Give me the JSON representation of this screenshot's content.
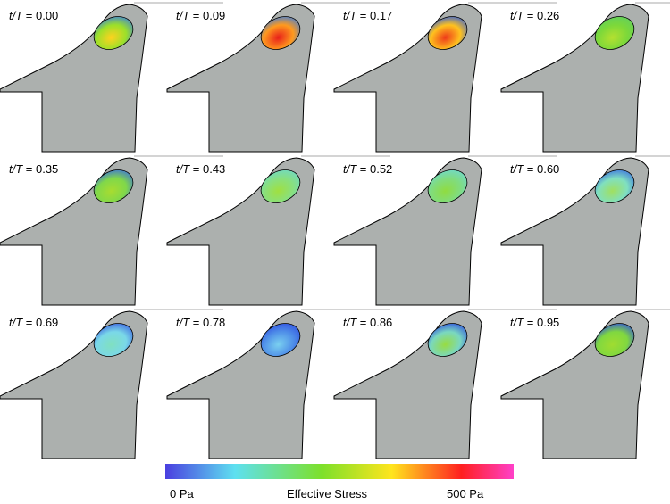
{
  "panels": [
    {
      "var": "t/T",
      "rest": " = 0.00",
      "fill": [
        "#ffd21e",
        "#9be02a",
        "#3b7fe0"
      ]
    },
    {
      "var": "t/T",
      "rest": " = 0.09",
      "fill": [
        "#e8201a",
        "#ff9a1e",
        "#3b7fe0"
      ]
    },
    {
      "var": "t/T",
      "rest": " = 0.17",
      "fill": [
        "#ee3a1a",
        "#ffc21e",
        "#2f5fe0"
      ]
    },
    {
      "var": "t/T",
      "rest": " = 0.26",
      "fill": [
        "#b4e030",
        "#7cd83a",
        "#60cf60"
      ]
    },
    {
      "var": "t/T",
      "rest": " = 0.35",
      "fill": [
        "#a8dc30",
        "#80d84a",
        "#3b6fe0"
      ]
    },
    {
      "var": "t/T",
      "rest": " = 0.43",
      "fill": [
        "#a0e040",
        "#88e080",
        "#70d8c8"
      ]
    },
    {
      "var": "t/T",
      "rest": " = 0.52",
      "fill": [
        "#90dc40",
        "#80dc80",
        "#70d8d0"
      ]
    },
    {
      "var": "t/T",
      "rest": " = 0.60",
      "fill": [
        "#a0e060",
        "#80e0c0",
        "#3b6fe0"
      ]
    },
    {
      "var": "t/T",
      "rest": " = 0.69",
      "fill": [
        "#80e0c0",
        "#7ad8e8",
        "#3b5fe0"
      ]
    },
    {
      "var": "t/T",
      "rest": " = 0.78",
      "fill": [
        "#7ad0f0",
        "#5090e8",
        "#3050e0"
      ]
    },
    {
      "var": "t/T",
      "rest": " = 0.86",
      "fill": [
        "#98dc40",
        "#7ad8c0",
        "#3050e0"
      ]
    },
    {
      "var": "t/T",
      "rest": " = 0.95",
      "fill": [
        "#a0dc30",
        "#80d840",
        "#3050e0"
      ]
    }
  ],
  "colorbar": {
    "min_label": "0 Pa",
    "title": "Effective Stress",
    "max_label": "500 Pa"
  }
}
